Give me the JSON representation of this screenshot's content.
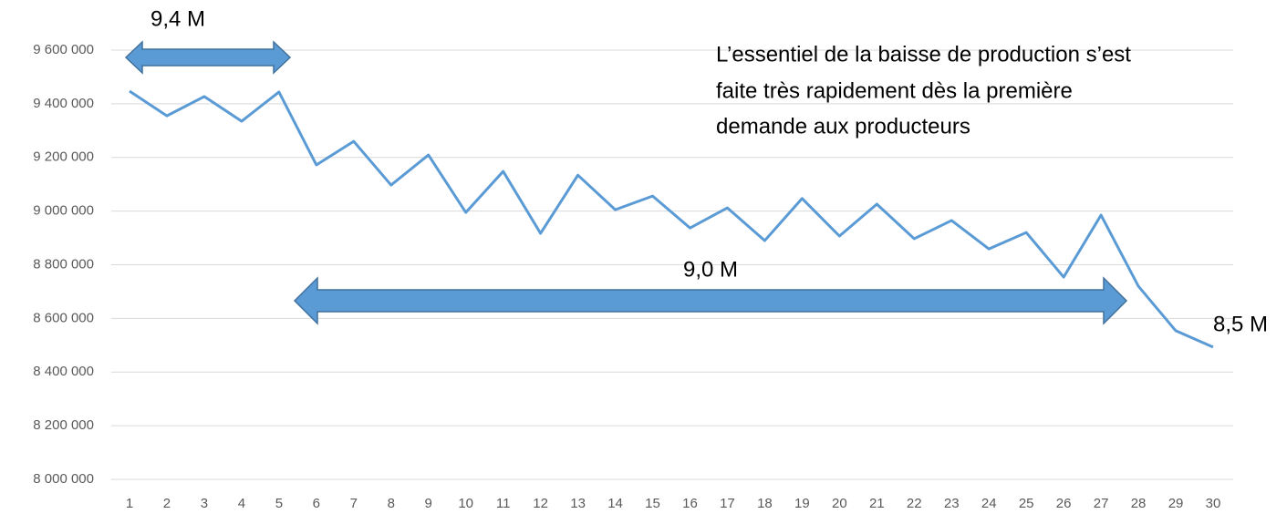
{
  "chart_data": {
    "type": "line",
    "categories": [
      "1",
      "2",
      "3",
      "4",
      "5",
      "6",
      "7",
      "8",
      "9",
      "10",
      "11",
      "12",
      "13",
      "14",
      "15",
      "16",
      "17",
      "18",
      "19",
      "20",
      "21",
      "22",
      "23",
      "24",
      "25",
      "26",
      "27",
      "28",
      "29",
      "30"
    ],
    "series": [
      {
        "name": null,
        "color": "#5b9bd5",
        "values": [
          9447000,
          9355000,
          9427000,
          9335000,
          9444000,
          9172000,
          9260000,
          9097000,
          9209000,
          8995000,
          9148000,
          8917000,
          9134000,
          9005000,
          9056000,
          8937000,
          9012000,
          8890000,
          9047000,
          8907000,
          9026000,
          8897000,
          8965000,
          8859000,
          8920000,
          8754000,
          8985000,
          8720000,
          8554000,
          8493000
        ]
      }
    ],
    "ylim": [
      8000000,
      9600000
    ],
    "yticks": [
      {
        "value": 8000000,
        "label": "8 000 000"
      },
      {
        "value": 8200000,
        "label": "8 200 000"
      },
      {
        "value": 8400000,
        "label": "8 400 000"
      },
      {
        "value": 8600000,
        "label": "8 600 000"
      },
      {
        "value": 8800000,
        "label": "8 800 000"
      },
      {
        "value": 9000000,
        "label": "9 000 000"
      },
      {
        "value": 9200000,
        "label": "9 200 000"
      },
      {
        "value": 9400000,
        "label": "9 400 000"
      },
      {
        "value": 9600000,
        "label": "9 600 000"
      }
    ],
    "grid": true,
    "annotations": [
      "9,4 M",
      "9,0 M",
      "8,5 M",
      "L’essentiel de la baisse de production s’est",
      "faite très rapidement dès la première",
      "demande aux producteurs"
    ]
  }
}
